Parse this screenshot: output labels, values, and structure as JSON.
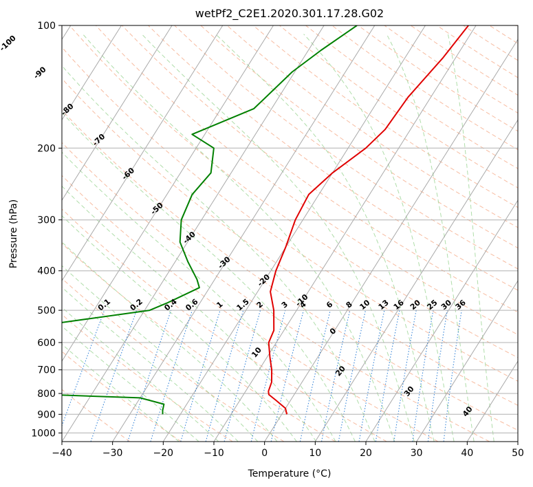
{
  "chart_data": {
    "type": "line",
    "chart_kind": "skew-t log-p",
    "title": "wetPf2_C2E1.2020.301.17.28.G02",
    "xlabel": "Temperature (°C)",
    "ylabel": "Pressure (hPa)",
    "xlim": [
      -40,
      50
    ],
    "ylim": [
      1050,
      100
    ],
    "y_scale": "log",
    "grid": true,
    "x_ticks": [
      -40,
      -30,
      -20,
      -10,
      0,
      10,
      20,
      30,
      40,
      50
    ],
    "x_tick_labels": [
      "−40",
      "−30",
      "−20",
      "−10",
      "0",
      "10",
      "20",
      "30",
      "40",
      "50"
    ],
    "y_ticks": [
      100,
      200,
      300,
      400,
      500,
      600,
      700,
      800,
      900,
      1000
    ],
    "y_tick_labels": [
      "100",
      "200",
      "300",
      "400",
      "500",
      "600",
      "700",
      "800",
      "900",
      "1000"
    ],
    "colors": {
      "temperature": "#e00000",
      "dewpoint": "#008000",
      "isotherm": "#a0a0a0",
      "dry_adiabat": "#f4a582",
      "moist_adiabat": "#a6d9a0",
      "mixing_ratio": "#1f77d4",
      "isotherm_label": "#1f77b4",
      "moist_label": "#d62728"
    },
    "series": [
      {
        "role": "temperature",
        "points": [
          [
            100,
            -11.5
          ],
          [
            120,
            -12.5
          ],
          [
            150,
            -14.5
          ],
          [
            180,
            -15.0
          ],
          [
            200,
            -16.5
          ],
          [
            230,
            -20.0
          ],
          [
            260,
            -22.0
          ],
          [
            300,
            -21.5
          ],
          [
            350,
            -20.0
          ],
          [
            400,
            -19.0
          ],
          [
            450,
            -17.5
          ],
          [
            500,
            -14.5
          ],
          [
            560,
            -12.0
          ],
          [
            600,
            -11.5
          ],
          [
            650,
            -9.5
          ],
          [
            700,
            -7.5
          ],
          [
            750,
            -6.0
          ],
          [
            790,
            -5.5
          ],
          [
            805,
            -5.0
          ],
          [
            830,
            -3.0
          ],
          [
            870,
            0.0
          ],
          [
            900,
            1.0
          ]
        ]
      },
      {
        "role": "dewpoint",
        "points": [
          [
            100,
            -33.5
          ],
          [
            115,
            -37.5
          ],
          [
            130,
            -40.5
          ],
          [
            160,
            -43.5
          ],
          [
            185,
            -52.5
          ],
          [
            200,
            -46.5
          ],
          [
            230,
            -44.0
          ],
          [
            260,
            -45.0
          ],
          [
            300,
            -44.0
          ],
          [
            340,
            -41.5
          ],
          [
            380,
            -37.5
          ],
          [
            420,
            -33.5
          ],
          [
            440,
            -32.0
          ],
          [
            480,
            -36.5
          ],
          [
            500,
            -39.0
          ],
          [
            560,
            -65.0
          ],
          [
            590,
            -53.0
          ],
          [
            610,
            -70.0
          ],
          [
            640,
            -74.0
          ],
          [
            660,
            -75.0
          ],
          [
            690,
            -76.5
          ],
          [
            720,
            -68.0
          ],
          [
            735,
            -67.0
          ],
          [
            760,
            -79.0
          ],
          [
            790,
            -68.0
          ],
          [
            820,
            -30.0
          ],
          [
            850,
            -24.5
          ],
          [
            880,
            -24.0
          ],
          [
            900,
            -23.5
          ]
        ]
      }
    ],
    "annotations": {
      "isotherm_labels": [
        "-100",
        "-90",
        "-80",
        "-70",
        "-60",
        "-50",
        "-40",
        "-30",
        "-20",
        "-10",
        "0"
      ],
      "mixing_ratio_labels": [
        "0.1",
        "0.2",
        "0.4",
        "0.6",
        "1",
        "1.5",
        "2",
        "3",
        "4",
        "6",
        "8",
        "10",
        "13",
        "16",
        "20",
        "25",
        "30",
        "36"
      ],
      "moist_adiabat_labels": [
        "10",
        "20",
        "30",
        "40"
      ]
    }
  }
}
